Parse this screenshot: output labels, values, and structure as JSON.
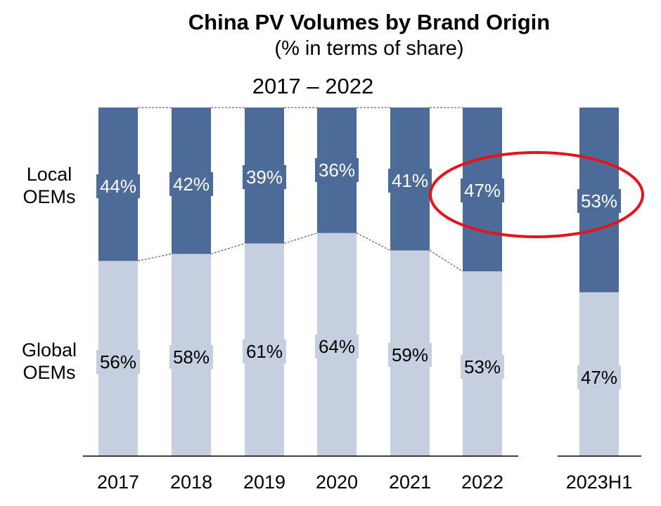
{
  "chart_data": {
    "type": "bar",
    "stacked": true,
    "title": "China PV Volumes by Brand Origin",
    "subtitle": "(% in terms of share)",
    "period_label": "2017 – 2022",
    "categories": [
      "2017",
      "2018",
      "2019",
      "2020",
      "2021",
      "2022",
      "2023H1"
    ],
    "series": [
      {
        "name": "Global OEMs",
        "values": [
          56,
          58,
          61,
          64,
          59,
          53,
          47
        ],
        "color": "#c5cfe0"
      },
      {
        "name": "Local OEMs",
        "values": [
          44,
          42,
          39,
          36,
          41,
          47,
          53
        ],
        "color": "#4d6b98"
      }
    ],
    "labels": {
      "Global OEMs": [
        "56%",
        "58%",
        "61%",
        "64%",
        "59%",
        "53%",
        "47%"
      ],
      "Local OEMs": [
        "44%",
        "42%",
        "39%",
        "36%",
        "41%",
        "47%",
        "53%"
      ]
    },
    "ylim": [
      0,
      100
    ],
    "highlight": {
      "categories": [
        "2022",
        "2023H1"
      ],
      "series": "Local OEMs",
      "shape": "ellipse",
      "color": "#e3151a"
    },
    "connector_lines": "dashed between 2017–2022 bars"
  }
}
